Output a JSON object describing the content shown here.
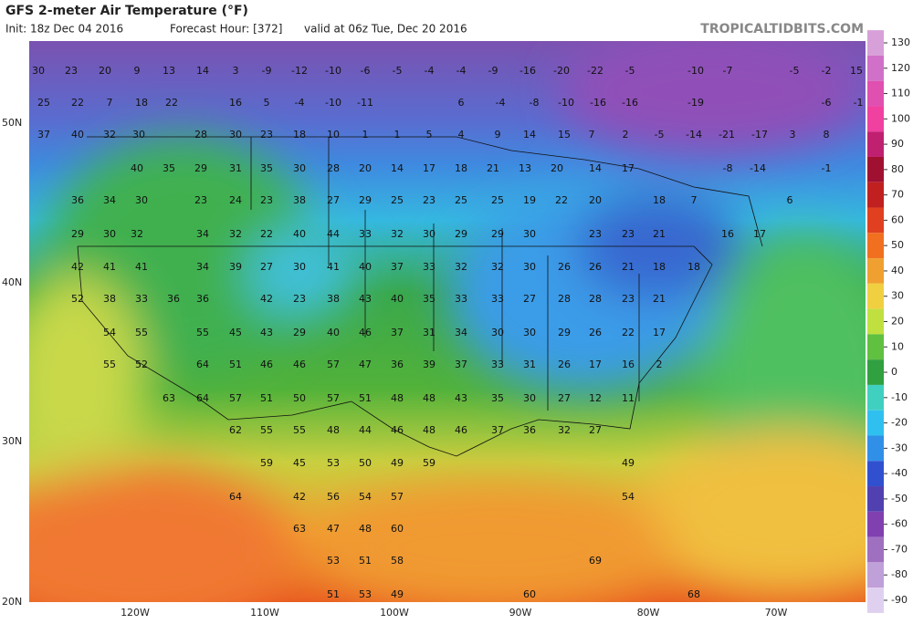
{
  "header": {
    "title": "GFS 2-meter Air Temperature (°F)",
    "init": "Init: 18z Dec 04 2016",
    "forecast_hour": "Forecast Hour: [372]",
    "valid": "valid at 06z Tue, Dec 20 2016",
    "credit": "TROPICALTIDBITS.COM"
  },
  "map": {
    "lat_labels": [
      "50N",
      "40N",
      "30N",
      "20N"
    ],
    "lon_labels": [
      "120W",
      "110W",
      "100W",
      "90W",
      "80W",
      "70W"
    ],
    "stations": [
      [
        30,
        23,
        20,
        9,
        13,
        14,
        3,
        -9,
        -12,
        -10,
        -6,
        -5,
        -4,
        -4,
        -9,
        -16,
        -20,
        -22,
        -5,
        -10,
        -7,
        -5,
        -2,
        15
      ],
      [
        25,
        22,
        7,
        18,
        22,
        16,
        5,
        -4,
        -10,
        -11,
        6,
        -4,
        -8,
        -10,
        -16,
        -16,
        -19,
        -6,
        -1
      ],
      [
        37,
        40,
        32,
        30,
        28,
        30,
        23,
        18,
        10,
        1,
        1,
        5,
        4,
        9,
        14,
        15,
        7,
        2,
        -5,
        -14,
        -21,
        -17,
        3,
        8
      ],
      [
        40,
        35,
        29,
        31,
        35,
        30,
        28,
        20,
        14,
        17,
        18,
        21,
        13,
        20,
        14,
        17,
        -8,
        -14,
        -1
      ],
      [
        36,
        34,
        30,
        23,
        24,
        23,
        38,
        27,
        29,
        25,
        23,
        25,
        25,
        19,
        22,
        20,
        18,
        7,
        6
      ],
      [
        29,
        30,
        32,
        34,
        32,
        22,
        40,
        44,
        33,
        32,
        30,
        29,
        29,
        30,
        23,
        23,
        21,
        16,
        17
      ],
      [
        42,
        41,
        41,
        34,
        39,
        27,
        30,
        41,
        40,
        37,
        33,
        32,
        32,
        30,
        26,
        26,
        21,
        18,
        18
      ],
      [
        52,
        38,
        33,
        36,
        36,
        42,
        23,
        38,
        43,
        40,
        35,
        33,
        33,
        27,
        28,
        28,
        23,
        21
      ],
      [
        54,
        55,
        55,
        45,
        43,
        29,
        40,
        46,
        37,
        31,
        34,
        30,
        30,
        29,
        26,
        22,
        17
      ],
      [
        55,
        52,
        64,
        51,
        46,
        46,
        57,
        47,
        36,
        39,
        37,
        33,
        31,
        26,
        17,
        16,
        2
      ],
      [
        63,
        64,
        57,
        51,
        50,
        57,
        51,
        48,
        48,
        43,
        35,
        30,
        27,
        12,
        11
      ],
      [
        62,
        55,
        55,
        48,
        44,
        46,
        48,
        46,
        37,
        36,
        32,
        27
      ],
      [
        59,
        45,
        53,
        50,
        49,
        59,
        49
      ],
      [
        64,
        42,
        56,
        54,
        57,
        54
      ],
      [
        63,
        47,
        48,
        60
      ],
      [
        53,
        51,
        58,
        69
      ],
      [
        51,
        53,
        49,
        60,
        68
      ]
    ]
  },
  "colorbar": {
    "ticks": [
      130,
      120,
      110,
      100,
      90,
      80,
      70,
      60,
      50,
      40,
      30,
      20,
      10,
      0,
      -10,
      -20,
      -30,
      -40,
      -50,
      -60,
      -70,
      -80,
      -90
    ]
  }
}
